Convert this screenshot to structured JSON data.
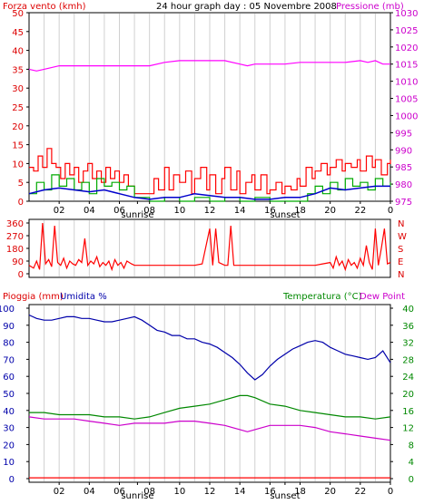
{
  "chart_data": [
    {
      "type": "line",
      "panel": "wind_pressure",
      "title": "24 hour graph day : 05 Novembre 2008",
      "left_label": "Forza vento (kmh)",
      "right_label": "Pressione (mb)",
      "x_tick_labels": [
        "02",
        "04",
        "06",
        "08",
        "10",
        "12",
        "14",
        "16",
        "18",
        "20",
        "22",
        "0"
      ],
      "sunrise_label": "sunrise",
      "sunset_label": "sunset",
      "sunrise_hour": 7.2,
      "sunset_hour": 17.0,
      "ylim_left": [
        0,
        50
      ],
      "yticks_left": [
        0,
        5,
        10,
        15,
        20,
        25,
        30,
        35,
        40,
        45,
        50
      ],
      "ylim_right": [
        975,
        1030
      ],
      "yticks_right": [
        975,
        980,
        985,
        990,
        995,
        1000,
        1005,
        1010,
        1015,
        1020,
        1025,
        1030
      ],
      "series": [
        {
          "key": "pressure",
          "axis": "right",
          "color": "#ff00ff",
          "x": [
            0,
            0.5,
            1,
            2,
            3,
            4,
            5,
            6,
            7,
            8,
            9,
            10,
            11,
            12,
            13,
            14,
            14.5,
            15,
            16,
            17,
            18,
            19,
            20,
            21,
            22,
            22.5,
            23,
            23.5,
            24
          ],
          "y": [
            1013.5,
            1013,
            1013.5,
            1014.5,
            1014.5,
            1014.5,
            1014.5,
            1014.5,
            1014.5,
            1014.5,
            1015.5,
            1016,
            1016,
            1016,
            1016,
            1015,
            1014.5,
            1015,
            1015,
            1015,
            1015.5,
            1015.5,
            1015.5,
            1015.5,
            1016,
            1015.5,
            1016,
            1015,
            1015
          ]
        },
        {
          "key": "wind_gust",
          "axis": "left",
          "color": "#ff0000",
          "x": [
            0,
            0.3,
            0.6,
            0.9,
            1.2,
            1.5,
            1.8,
            2.1,
            2.4,
            2.7,
            3,
            3.3,
            3.6,
            3.9,
            4.2,
            4.5,
            4.8,
            5.1,
            5.4,
            5.7,
            6,
            6.3,
            6.6,
            7,
            8,
            8.3,
            8.6,
            9,
            9.3,
            9.6,
            10,
            10.4,
            10.8,
            11,
            11.4,
            11.8,
            12,
            12.4,
            12.8,
            13,
            13.4,
            13.8,
            14,
            14.4,
            14.8,
            15,
            15.4,
            15.8,
            16,
            16.4,
            16.8,
            17,
            17.4,
            17.8,
            18,
            18.4,
            18.8,
            19,
            19.4,
            19.8,
            20,
            20.4,
            20.8,
            21,
            21.4,
            21.8,
            22,
            22.4,
            22.8,
            23,
            23.4,
            23.8,
            24
          ],
          "y": [
            9,
            8,
            12,
            9,
            14,
            10,
            9,
            6,
            10,
            7,
            9,
            5,
            8,
            10,
            6,
            8,
            5,
            9,
            6,
            8,
            5,
            7,
            4,
            2,
            2,
            6,
            3,
            9,
            3,
            7,
            5,
            8,
            2,
            6,
            9,
            3,
            7,
            2,
            6,
            9,
            3,
            8,
            2,
            5,
            7,
            3,
            7,
            2,
            3,
            5,
            2,
            4,
            3,
            6,
            4,
            9,
            6,
            8,
            10,
            7,
            9,
            11,
            8,
            10,
            9,
            11,
            8,
            12,
            9,
            11,
            7,
            10,
            11
          ]
        },
        {
          "key": "wind_speed",
          "axis": "left",
          "color": "#00aa00",
          "x": [
            0,
            0.5,
            1,
            1.5,
            2,
            2.5,
            3,
            3.5,
            4,
            4.5,
            5,
            5.5,
            6,
            6.5,
            7,
            8,
            9,
            10,
            11,
            12,
            13,
            14,
            15,
            16,
            17,
            18,
            18.5,
            19,
            19.5,
            20,
            20.5,
            21,
            21.5,
            22,
            22.5,
            23,
            23.5,
            24
          ],
          "y": [
            2,
            5,
            3,
            7,
            4,
            6,
            3,
            5,
            2,
            6,
            4,
            5,
            3,
            4,
            1,
            0,
            1,
            0,
            1,
            0,
            1,
            0,
            1,
            0,
            0,
            0,
            2,
            4,
            2,
            5,
            3,
            6,
            4,
            5,
            3,
            6,
            4,
            5
          ]
        },
        {
          "key": "wind_avg",
          "axis": "left",
          "color": "#0000cc",
          "x": [
            0,
            1,
            2,
            3,
            4,
            5,
            6,
            7,
            8,
            9,
            10,
            11,
            12,
            13,
            14,
            15,
            16,
            17,
            18,
            19,
            20,
            21,
            22,
            23,
            24
          ],
          "y": [
            2,
            3,
            3.5,
            3,
            2.5,
            3,
            2,
            1,
            0.5,
            1,
            1,
            2,
            1.5,
            1,
            1,
            0.5,
            0.5,
            1,
            1,
            2,
            3.5,
            3,
            3.5,
            4,
            4
          ]
        }
      ]
    },
    {
      "type": "line",
      "panel": "wind_direction",
      "ylim": [
        0,
        360
      ],
      "yticks": [
        0,
        90,
        180,
        270,
        360
      ],
      "compass_labels": [
        "N",
        "W",
        "S",
        "E",
        "N"
      ],
      "series": [
        {
          "key": "direction",
          "color": "#ff0000",
          "x": [
            0,
            0.3,
            0.5,
            0.7,
            0.9,
            1.1,
            1.3,
            1.5,
            1.7,
            1.9,
            2.1,
            2.3,
            2.5,
            2.7,
            2.9,
            3.1,
            3.3,
            3.5,
            3.7,
            3.9,
            4.1,
            4.3,
            4.5,
            4.7,
            4.9,
            5.1,
            5.3,
            5.5,
            5.7,
            5.9,
            6.1,
            6.3,
            6.5,
            6.8,
            7,
            8,
            9,
            9.5,
            10,
            10.5,
            11,
            11.5,
            12,
            12.2,
            12.4,
            12.6,
            13,
            13.2,
            13.4,
            13.6,
            14,
            15,
            16,
            17,
            18,
            19,
            19.5,
            20,
            20.2,
            20.4,
            20.6,
            20.8,
            21,
            21.2,
            21.4,
            21.6,
            21.8,
            22,
            22.2,
            22.4,
            22.6,
            22.8,
            23,
            23.2,
            23.4,
            23.6,
            23.8,
            24
          ],
          "y": [
            60,
            40,
            90,
            30,
            360,
            70,
            100,
            50,
            340,
            80,
            60,
            110,
            40,
            90,
            70,
            60,
            100,
            80,
            250,
            60,
            90,
            70,
            120,
            50,
            80,
            60,
            90,
            30,
            100,
            60,
            80,
            40,
            90,
            70,
            60,
            60,
            60,
            60,
            60,
            60,
            60,
            70,
            320,
            60,
            320,
            80,
            60,
            60,
            340,
            60,
            60,
            60,
            60,
            60,
            60,
            60,
            70,
            80,
            40,
            120,
            60,
            90,
            30,
            100,
            60,
            80,
            40,
            110,
            60,
            200,
            80,
            30,
            320,
            60,
            180,
            320,
            70,
            80
          ]
        }
      ]
    },
    {
      "type": "line",
      "panel": "temp_humidity",
      "left_label_1": "Pioggia (mm)",
      "left_label_2": "Umidita %",
      "right_label_1": "Temperatura (°C)",
      "right_label_2": "Dew Point",
      "ylim_left": [
        0,
        100
      ],
      "yticks_left": [
        0,
        10,
        20,
        30,
        40,
        50,
        60,
        70,
        80,
        90,
        100
      ],
      "ylim_right": [
        0,
        40
      ],
      "yticks_right": [
        0,
        4,
        8,
        12,
        16,
        20,
        24,
        28,
        32,
        36,
        40
      ],
      "series": [
        {
          "key": "humidity",
          "axis": "left",
          "color": "#0000aa",
          "x": [
            0,
            0.5,
            1,
            1.5,
            2,
            2.5,
            3,
            3.5,
            4,
            4.5,
            5,
            5.5,
            6,
            6.5,
            7,
            7.5,
            8,
            8.5,
            9,
            9.5,
            10,
            10.5,
            11,
            11.5,
            12,
            12.5,
            13,
            13.5,
            14,
            14.5,
            15,
            15.5,
            16,
            16.5,
            17,
            17.5,
            18,
            18.5,
            19,
            19.5,
            20,
            20.5,
            21,
            21.5,
            22,
            22.5,
            23,
            23.5,
            24
          ],
          "y": [
            96,
            94,
            93,
            93,
            94,
            95,
            95,
            94,
            94,
            93,
            92,
            92,
            93,
            94,
            95,
            93,
            90,
            87,
            86,
            84,
            84,
            82,
            82,
            80,
            79,
            77,
            74,
            71,
            67,
            62,
            58,
            61,
            66,
            70,
            73,
            76,
            78,
            80,
            81,
            80,
            77,
            75,
            73,
            72,
            71,
            70,
            71,
            75,
            68
          ]
        },
        {
          "key": "temperature",
          "axis": "right",
          "color": "#008800",
          "x": [
            0,
            1,
            2,
            3,
            4,
            5,
            6,
            7,
            8,
            9,
            10,
            11,
            12,
            13,
            14,
            14.5,
            15,
            16,
            17,
            18,
            19,
            20,
            21,
            22,
            23,
            24
          ],
          "y": [
            15.5,
            15.5,
            15,
            15,
            15,
            14.5,
            14.5,
            14,
            14.5,
            15.5,
            16.5,
            17,
            17.5,
            18.5,
            19.5,
            19.5,
            19,
            17.5,
            17,
            16,
            15.5,
            15,
            14.5,
            14.5,
            14,
            14.5
          ]
        },
        {
          "key": "dewpoint",
          "axis": "right",
          "color": "#cc00cc",
          "x": [
            0,
            1,
            2,
            3,
            4,
            5,
            6,
            7,
            8,
            9,
            10,
            11,
            12,
            13,
            14,
            14.5,
            15,
            16,
            17,
            18,
            19,
            20,
            21,
            22,
            23,
            24
          ],
          "y": [
            14.5,
            14,
            14,
            14,
            13.5,
            13,
            12.5,
            13,
            13,
            13,
            13.5,
            13.5,
            13,
            12.5,
            11.5,
            11,
            11.5,
            12.5,
            12.5,
            12.5,
            12,
            11,
            10.5,
            10,
            9.5,
            9
          ]
        },
        {
          "key": "rain",
          "axis": "left",
          "color": "#ff0000",
          "x": [
            0,
            24
          ],
          "y": [
            0.5,
            0.5
          ]
        }
      ]
    }
  ]
}
